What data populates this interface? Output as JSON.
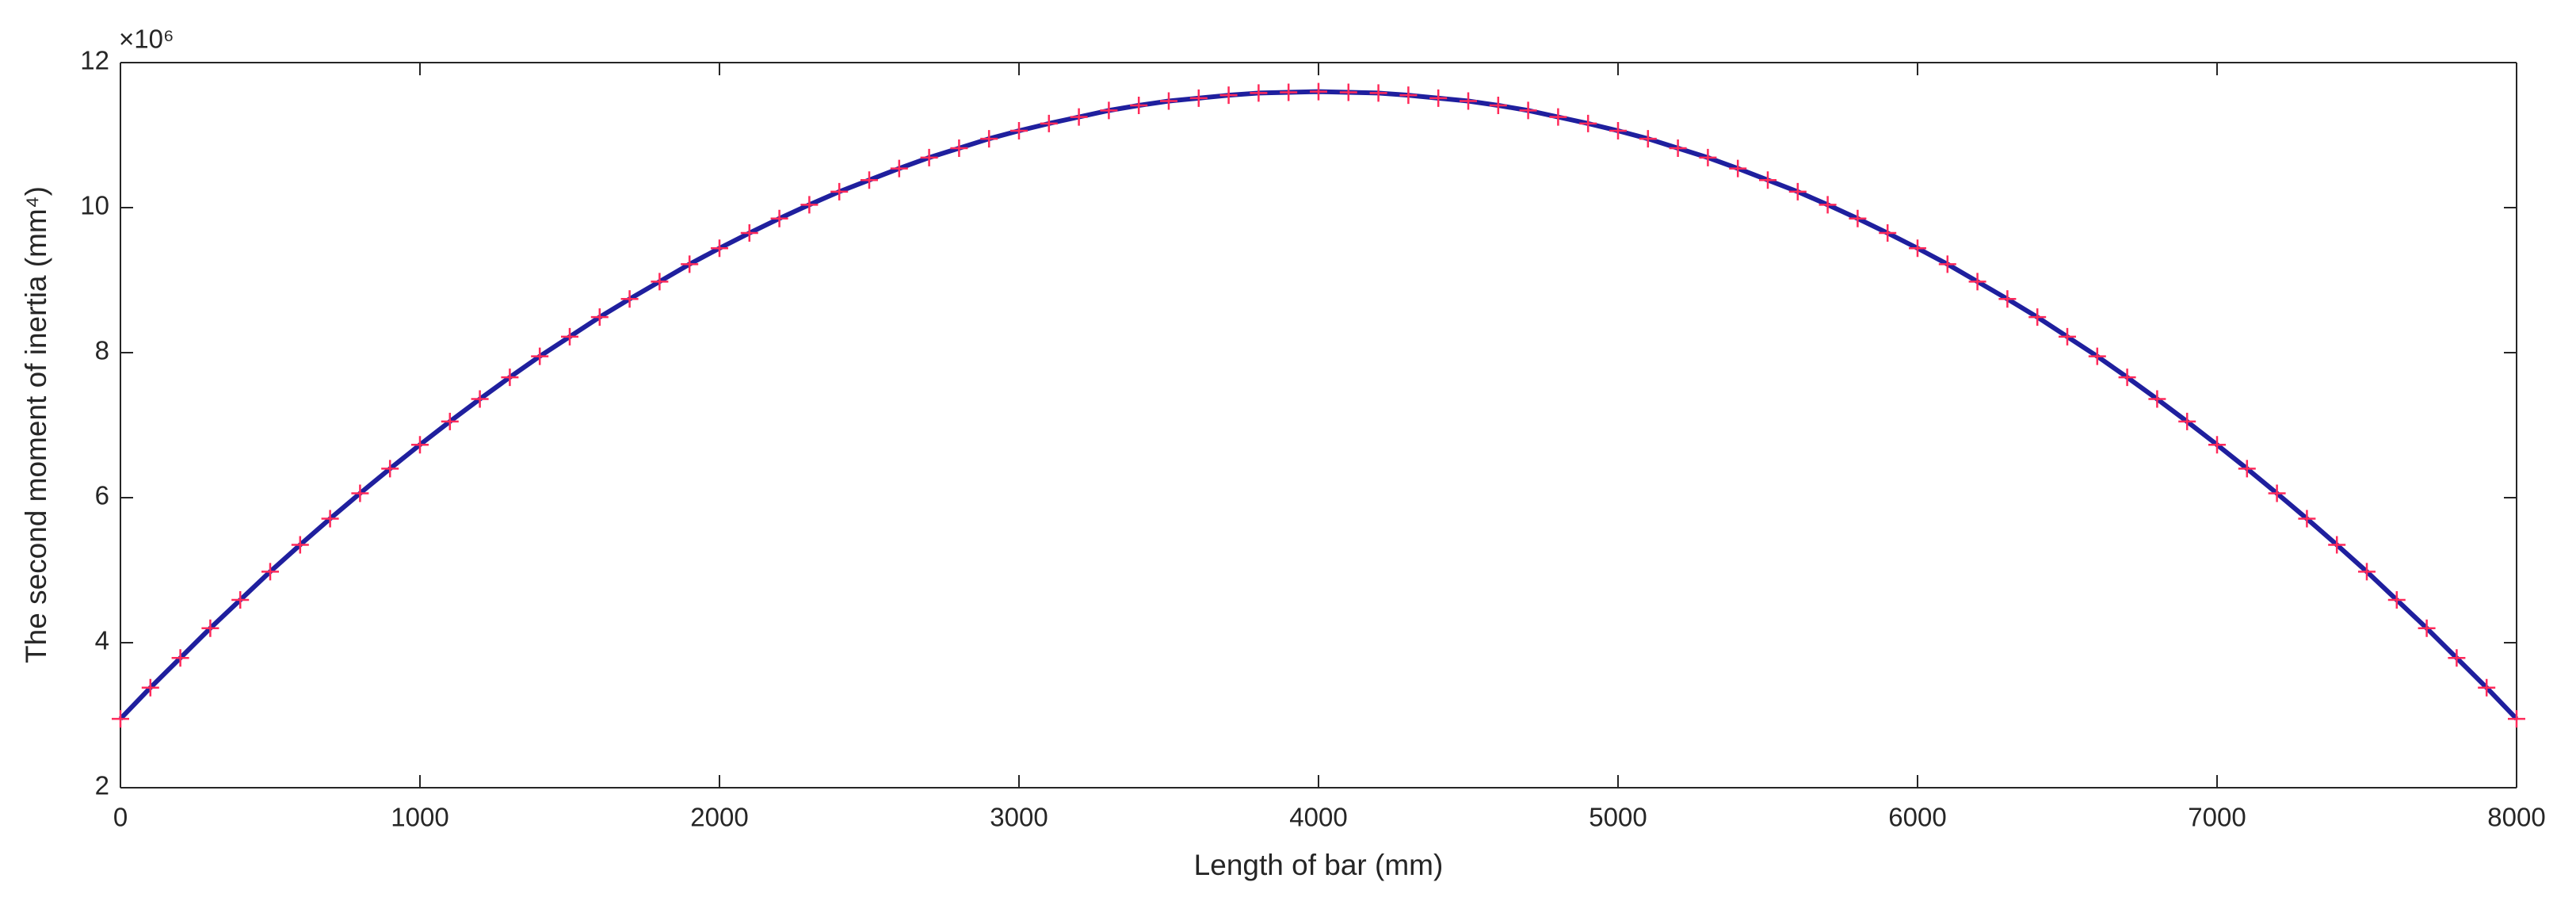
{
  "chart_data": {
    "type": "line",
    "xlabel": "Length of bar (mm)",
    "ylabel": "The second moment of inertia (mm⁴)",
    "y_exponent_label": "×10⁶",
    "x": [
      0,
      100,
      200,
      300,
      400,
      500,
      600,
      700,
      800,
      900,
      1000,
      1100,
      1200,
      1300,
      1400,
      1500,
      1600,
      1700,
      1800,
      1900,
      2000,
      2100,
      2200,
      2300,
      2400,
      2500,
      2600,
      2700,
      2800,
      2900,
      3000,
      3100,
      3200,
      3300,
      3400,
      3500,
      3600,
      3700,
      3800,
      3900,
      4000,
      4100,
      4200,
      4300,
      4400,
      4500,
      4600,
      4700,
      4800,
      4900,
      5000,
      5100,
      5200,
      5300,
      5400,
      5500,
      5600,
      5700,
      5800,
      5900,
      6000,
      6100,
      6200,
      6300,
      6400,
      6500,
      6600,
      6700,
      6800,
      6900,
      7000,
      7100,
      7200,
      7300,
      7400,
      7500,
      7600,
      7700,
      7800,
      7900,
      8000
    ],
    "series": [
      {
        "color": "#1f1f9e",
        "marker": "+",
        "marker_color": "#ff2a5a",
        "values": [
          2.95,
          3.38,
          3.79,
          4.2,
          4.59,
          4.98,
          5.35,
          5.71,
          6.06,
          6.4,
          6.73,
          7.05,
          7.36,
          7.66,
          7.95,
          8.22,
          8.49,
          8.74,
          8.98,
          9.22,
          9.44,
          9.65,
          9.85,
          10.04,
          10.22,
          10.38,
          10.54,
          10.69,
          10.82,
          10.95,
          11.06,
          11.16,
          11.25,
          11.34,
          11.41,
          11.47,
          11.51,
          11.55,
          11.58,
          11.59,
          11.6,
          11.59,
          11.58,
          11.55,
          11.51,
          11.47,
          11.41,
          11.34,
          11.25,
          11.16,
          11.06,
          10.95,
          10.82,
          10.69,
          10.54,
          10.38,
          10.22,
          10.04,
          9.85,
          9.65,
          9.44,
          9.22,
          8.98,
          8.74,
          8.49,
          8.22,
          7.95,
          7.66,
          7.36,
          7.05,
          6.73,
          6.4,
          6.06,
          5.71,
          5.35,
          4.98,
          4.59,
          4.2,
          3.79,
          3.38,
          2.95
        ]
      }
    ],
    "xlim": [
      0,
      8000
    ],
    "xticks": [
      0,
      1000,
      2000,
      3000,
      4000,
      5000,
      6000,
      7000,
      8000
    ],
    "ylim": [
      2,
      12
    ],
    "yticks": [
      2,
      4,
      6,
      8,
      10,
      12
    ],
    "grid": false,
    "box": true
  }
}
